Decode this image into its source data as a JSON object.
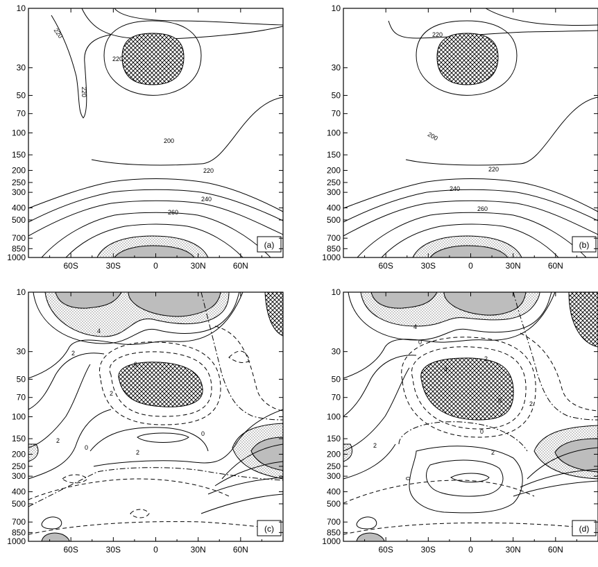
{
  "chart_data": [
    {
      "type": "contour",
      "panel_label": "(a)",
      "x_ticks": [
        "60S",
        "30S",
        "0",
        "30N",
        "60N"
      ],
      "y_ticks": [
        "10",
        "30",
        "50",
        "70",
        "100",
        "150",
        "200",
        "250",
        "300",
        "400",
        "500",
        "700",
        "850",
        "1000"
      ],
      "contour_labels": [
        "220",
        "220",
        "220",
        "200",
        "220",
        "240",
        "260"
      ]
    },
    {
      "type": "contour",
      "panel_label": "(b)",
      "x_ticks": [
        "60S",
        "30S",
        "0",
        "30N",
        "60N"
      ],
      "y_ticks": [
        "10",
        "30",
        "50",
        "70",
        "100",
        "150",
        "200",
        "250",
        "300",
        "400",
        "500",
        "700",
        "850",
        "1000"
      ],
      "contour_labels": [
        "220",
        "200",
        "220",
        "240",
        "260"
      ]
    },
    {
      "type": "contour",
      "panel_label": "(c)",
      "x_ticks": [
        "60S",
        "30S",
        "0",
        "30N",
        "60N"
      ],
      "y_ticks": [
        "10",
        "30",
        "50",
        "70",
        "100",
        "150",
        "200",
        "250",
        "300",
        "400",
        "500",
        "700",
        "850",
        "1000"
      ],
      "contour_labels": [
        "4",
        "2",
        "0",
        "2",
        "2",
        "0",
        "2",
        "0"
      ]
    },
    {
      "type": "contour",
      "panel_label": "(d)",
      "x_ticks": [
        "60S",
        "30S",
        "0",
        "30N",
        "60N"
      ],
      "y_ticks": [
        "10",
        "30",
        "50",
        "70",
        "100",
        "150",
        "200",
        "250",
        "300",
        "400",
        "500",
        "700",
        "850",
        "1000"
      ],
      "contour_labels": [
        "4",
        "0",
        "2",
        "4",
        "0",
        "2",
        "2",
        "0",
        "2",
        "0"
      ]
    }
  ]
}
